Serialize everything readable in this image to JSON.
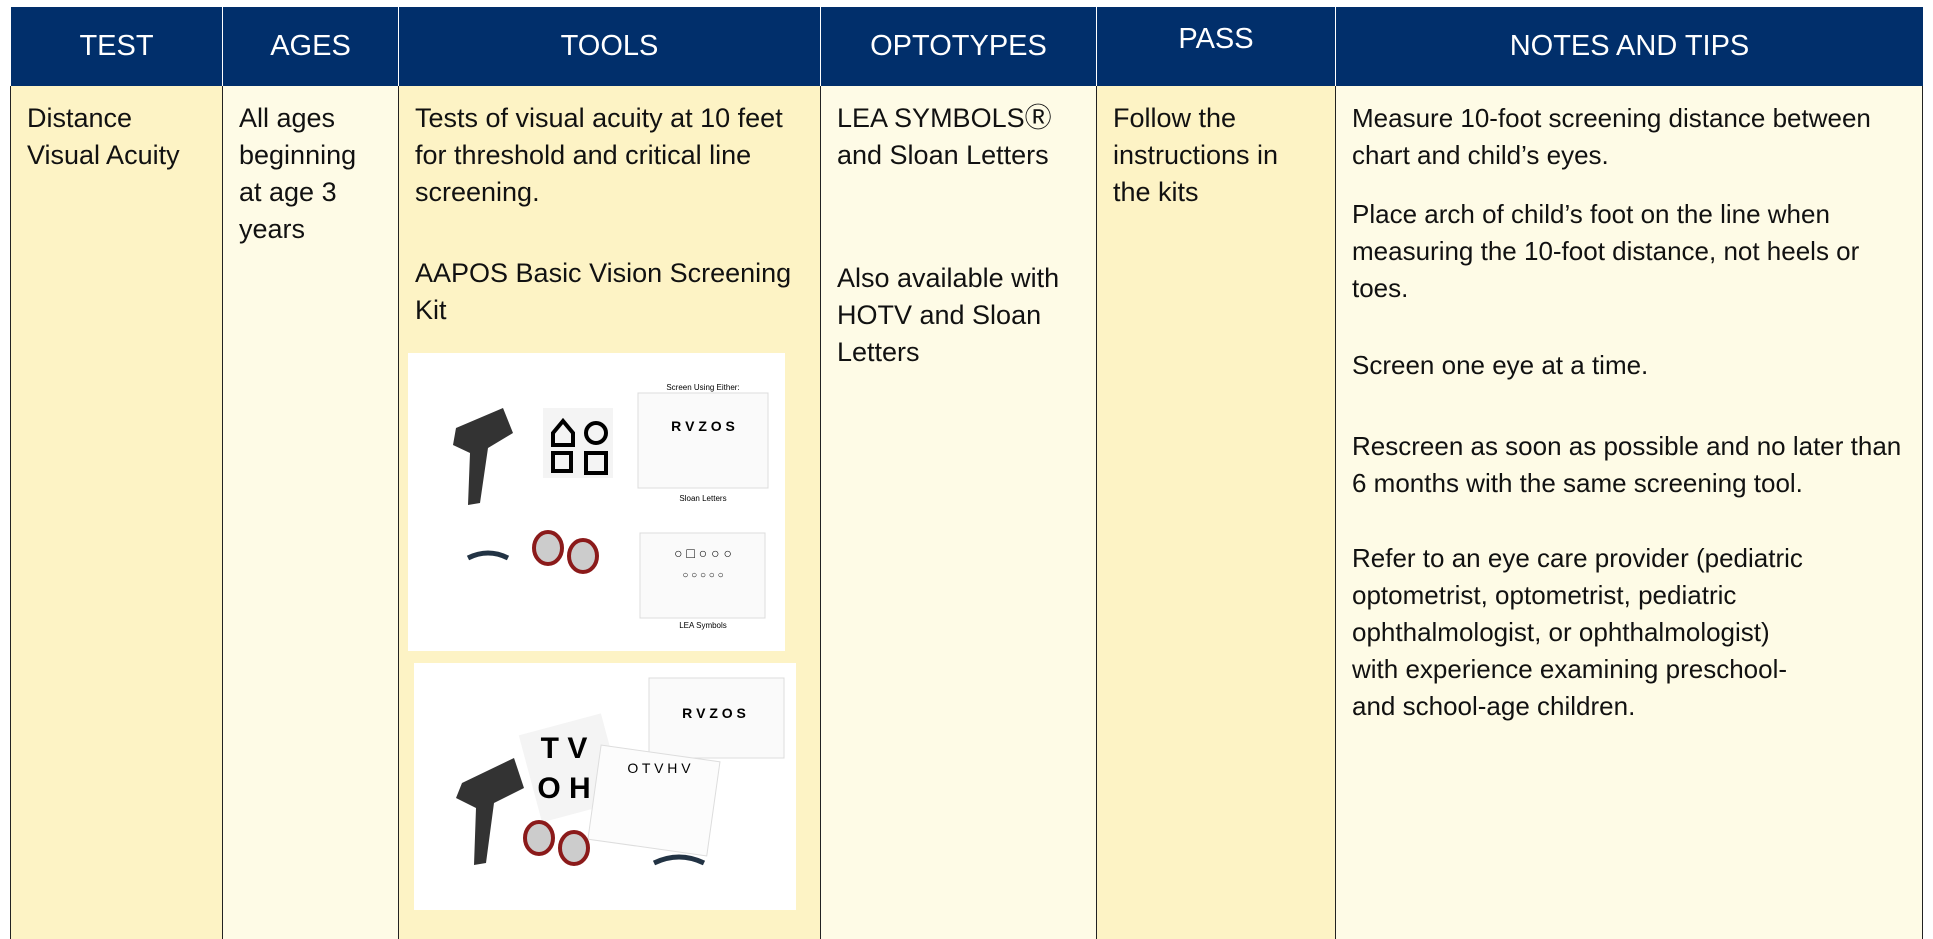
{
  "table": {
    "header": [
      "TEST",
      "AGES",
      "TOOLS",
      "OPTOTYPES",
      "PASS",
      "NOTES AND TIPS"
    ],
    "row": {
      "test": "Distance Visual Acuity",
      "ages": "All ages beginning at age 3 years",
      "tools": [
        "Tests of visual acuity at 10 feet for threshold and critical line screening.",
        "AAPOS Basic Vision Screening Kit"
      ],
      "optotypes": [
        "LEA SYMBOLSⓇ and Sloan Letters",
        "Also available with HOTV and Sloan Letters"
      ],
      "pass": "Follow the instructions in the kits",
      "notes": [
        "Measure 10-foot screening distance between chart and child’s eyes.",
        "Place arch of child’s foot on the line when measuring the 10-foot distance, not heels or toes.",
        "Screen one eye at a time.",
        "Rescreen as soon as possible and no later than 6 months with the same screening tool.",
        "Refer to an eye care provider (pediatric optometrist, optometrist, pediatric ophthalmologist, or ophthalmologist) with experience examining preschool- and school-age children."
      ]
    },
    "kit_images": {
      "first": [
        "Screen Using Either:",
        "R V Z O S",
        "Sloan Letters",
        "LEA Symbols"
      ],
      "second": [
        "R V Z O S",
        "T V",
        "O H",
        "O T V H V"
      ]
    }
  }
}
